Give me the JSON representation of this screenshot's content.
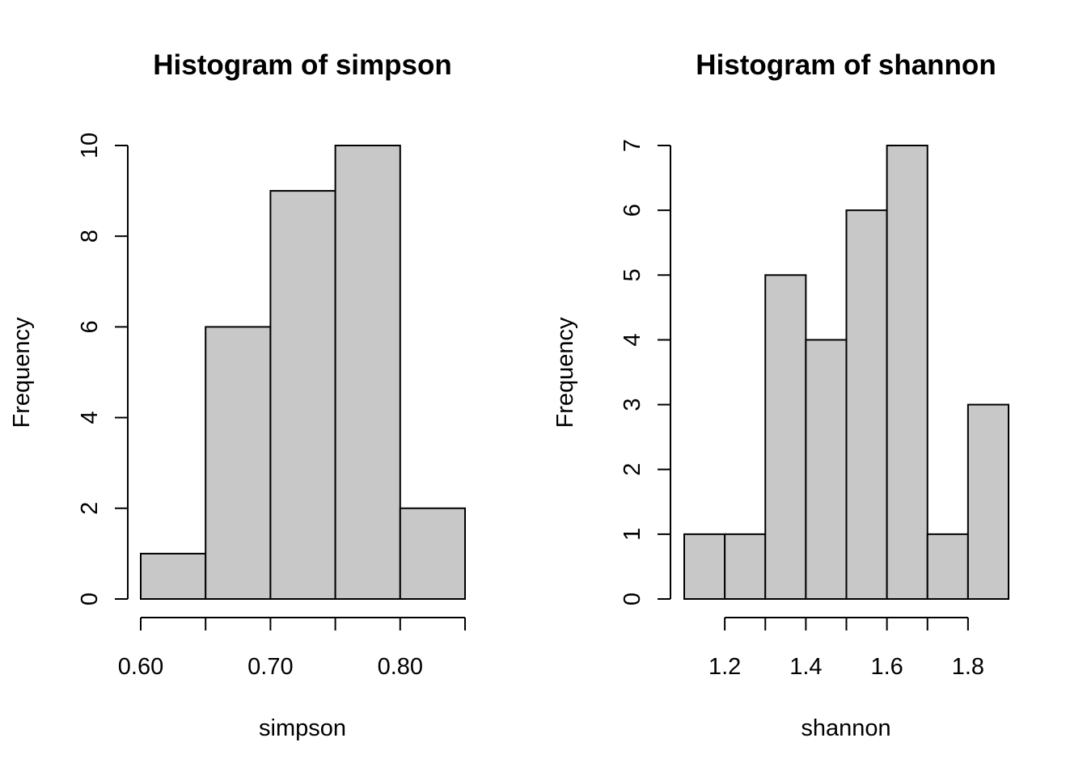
{
  "chart_data": [
    {
      "type": "bar",
      "title": "Histogram of simpson",
      "xlabel": "simpson",
      "ylabel": "Frequency",
      "bin_edges": [
        0.6,
        0.65,
        0.7,
        0.75,
        0.8,
        0.85
      ],
      "values": [
        1,
        6,
        9,
        10,
        2
      ],
      "xlim": [
        0.6,
        0.85
      ],
      "ylim": [
        0,
        10
      ],
      "x_ticks": [
        0.6,
        0.65,
        0.7,
        0.75,
        0.8,
        0.85
      ],
      "x_tick_labels": [
        "0.60",
        "",
        "0.70",
        "",
        "0.80",
        ""
      ],
      "y_ticks": [
        0,
        2,
        4,
        6,
        8,
        10
      ],
      "y_tick_labels": [
        "0",
        "2",
        "4",
        "6",
        "8",
        "10"
      ],
      "bar_color": "#c8c8c8",
      "grid": false
    },
    {
      "type": "bar",
      "title": "Histogram of shannon",
      "xlabel": "shannon",
      "ylabel": "Frequency",
      "bin_edges": [
        1.1,
        1.2,
        1.3,
        1.4,
        1.5,
        1.6,
        1.7,
        1.8,
        1.9
      ],
      "values": [
        1,
        1,
        5,
        4,
        6,
        7,
        1,
        3
      ],
      "xlim": [
        1.1,
        1.9
      ],
      "ylim": [
        0,
        7
      ],
      "x_ticks": [
        1.2,
        1.3,
        1.4,
        1.5,
        1.6,
        1.7,
        1.8
      ],
      "x_tick_labels": [
        "1.2",
        "",
        "1.4",
        "",
        "1.6",
        "",
        "1.8"
      ],
      "y_ticks": [
        0,
        1,
        2,
        3,
        4,
        5,
        6,
        7
      ],
      "y_tick_labels": [
        "0",
        "1",
        "2",
        "3",
        "4",
        "5",
        "6",
        "7"
      ],
      "bar_color": "#c8c8c8",
      "grid": false
    }
  ]
}
